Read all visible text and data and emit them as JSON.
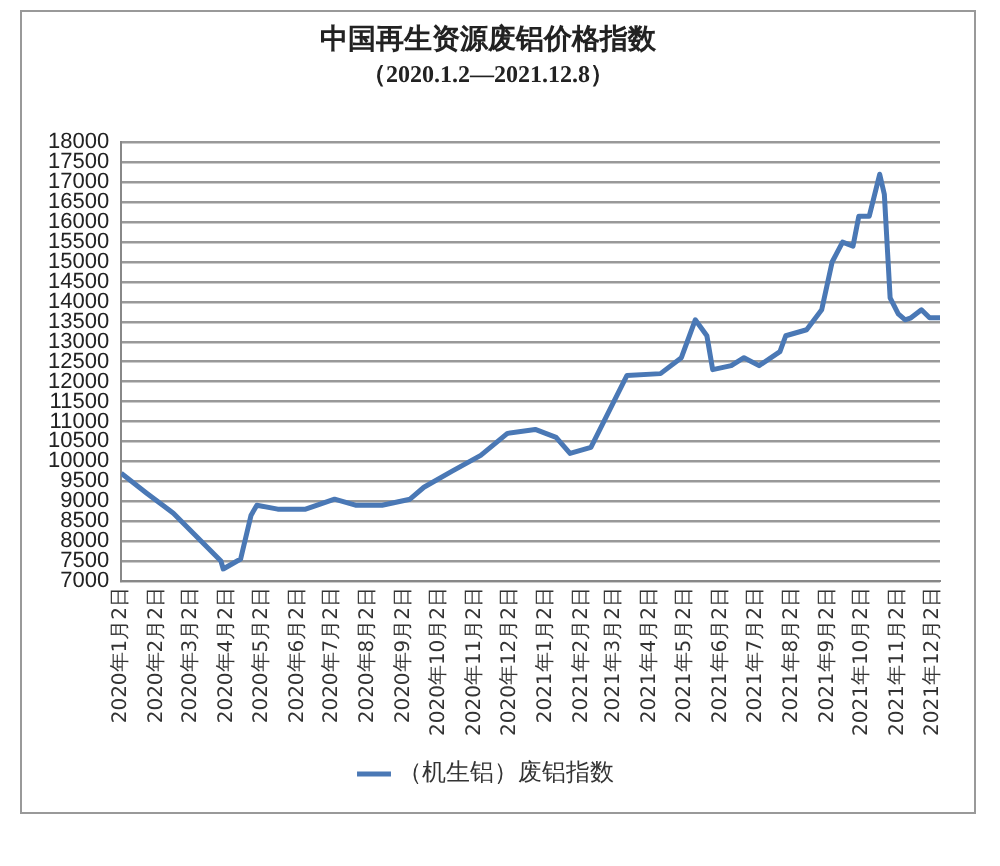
{
  "chart_data": {
    "type": "line",
    "title": "中国再生资源废铝价格指数",
    "subtitle": "（2020.1.2—2021.12.8）",
    "xlim": [
      "2020-01-02",
      "2021-12-08"
    ],
    "xticks": [
      {
        "value": "2020-01-02",
        "label": "2020年1月2日"
      },
      {
        "value": "2020-02-02",
        "label": "2020年2月2日"
      },
      {
        "value": "2020-03-02",
        "label": "2020年3月2日"
      },
      {
        "value": "2020-04-02",
        "label": "2020年4月2日"
      },
      {
        "value": "2020-05-02",
        "label": "2020年5月2日"
      },
      {
        "value": "2020-06-02",
        "label": "2020年6月2日"
      },
      {
        "value": "2020-07-02",
        "label": "2020年7月2日"
      },
      {
        "value": "2020-08-02",
        "label": "2020年8月2日"
      },
      {
        "value": "2020-09-02",
        "label": "2020年9月2日"
      },
      {
        "value": "2020-10-02",
        "label": "2020年10月2日"
      },
      {
        "value": "2020-11-02",
        "label": "2020年11月2日"
      },
      {
        "value": "2020-12-02",
        "label": "2020年12月2日"
      },
      {
        "value": "2021-01-02",
        "label": "2021年1月2日"
      },
      {
        "value": "2021-02-02",
        "label": "2021年2月2日"
      },
      {
        "value": "2021-03-02",
        "label": "2021年3月2日"
      },
      {
        "value": "2021-04-02",
        "label": "2021年4月2日"
      },
      {
        "value": "2021-05-02",
        "label": "2021年5月2日"
      },
      {
        "value": "2021-06-02",
        "label": "2021年6月2日"
      },
      {
        "value": "2021-07-02",
        "label": "2021年7月2日"
      },
      {
        "value": "2021-08-02",
        "label": "2021年8月2日"
      },
      {
        "value": "2021-09-02",
        "label": "2021年9月2日"
      },
      {
        "value": "2021-10-02",
        "label": "2021年10月2日"
      },
      {
        "value": "2021-11-02",
        "label": "2021年11月2日"
      },
      {
        "value": "2021-12-02",
        "label": "2021年12月2日"
      }
    ],
    "ylim": [
      7000,
      18000
    ],
    "yticks": [
      7000,
      7500,
      8000,
      8500,
      9000,
      9500,
      10000,
      10500,
      11000,
      11500,
      12000,
      12500,
      13000,
      13500,
      14000,
      14500,
      15000,
      15500,
      16000,
      16500,
      17000,
      17500,
      18000
    ],
    "grid": "y",
    "legend": "bottom",
    "marker": "none",
    "line_style": "solid",
    "x": [
      "2020-01-02",
      "2020-01-24",
      "2020-02-16",
      "2020-03-28",
      "2020-03-30",
      "2020-04-14",
      "2020-04-23",
      "2020-04-28",
      "2020-05-16",
      "2020-06-09",
      "2020-07-04",
      "2020-07-22",
      "2020-08-14",
      "2020-09-07",
      "2020-09-19",
      "2020-10-13",
      "2020-11-07",
      "2020-11-30",
      "2020-12-24",
      "2021-01-11",
      "2021-01-23",
      "2021-02-10",
      "2021-03-13",
      "2021-04-11",
      "2021-04-29",
      "2021-05-11",
      "2021-05-21",
      "2021-05-26",
      "2021-06-11",
      "2021-06-22",
      "2021-07-05",
      "2021-07-23",
      "2021-07-28",
      "2021-08-15",
      "2021-08-28",
      "2021-09-06",
      "2021-09-15",
      "2021-09-24",
      "2021-09-29",
      "2021-10-08",
      "2021-10-17",
      "2021-10-21",
      "2021-10-26",
      "2021-11-02",
      "2021-11-08",
      "2021-11-13",
      "2021-11-22",
      "2021-11-29",
      "2021-12-08"
    ],
    "series": [
      {
        "name": "（机生铝）废铝指数",
        "color": "#4a78b5",
        "values": [
          9700,
          9200,
          8700,
          7500,
          7300,
          7550,
          8650,
          8900,
          8800,
          8800,
          9050,
          8900,
          8900,
          9050,
          9350,
          9750,
          10150,
          10700,
          10800,
          10600,
          10200,
          10350,
          12150,
          12200,
          12600,
          13550,
          13150,
          12300,
          12400,
          12600,
          12400,
          12750,
          13150,
          13300,
          13800,
          15000,
          15500,
          15400,
          16150,
          16150,
          17200,
          16700,
          14100,
          13700,
          13550,
          13600,
          13800,
          13600,
          13600
        ]
      }
    ]
  }
}
